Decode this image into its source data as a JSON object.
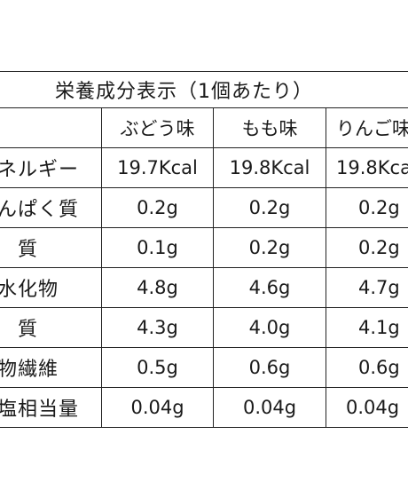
{
  "title": "栄養成分表示（1個あたり）",
  "columns": [
    "ぶどう味",
    "もも味",
    "りんご味"
  ],
  "rows": [
    {
      "label": "エネルギー",
      "values": [
        "19.7Kcal",
        "19.8Kcal",
        "19.8Kcal"
      ]
    },
    {
      "label": "たんぱく質",
      "values": [
        "0.2g",
        "0.2g",
        "0.2g"
      ]
    },
    {
      "label": "脂　質",
      "values": [
        "0.1g",
        "0.2g",
        "0.2g"
      ]
    },
    {
      "label": "炭水化物",
      "values": [
        "4.8g",
        "4.6g",
        "4.7g"
      ]
    },
    {
      "label": "糖　質",
      "values": [
        "4.3g",
        "4.0g",
        "4.1g"
      ]
    },
    {
      "label": "食物繊維",
      "values": [
        "0.5g",
        "0.6g",
        "0.6g"
      ]
    },
    {
      "label": "食塩相当量",
      "values": [
        "0.04g",
        "0.04g",
        "0.04g"
      ]
    }
  ]
}
